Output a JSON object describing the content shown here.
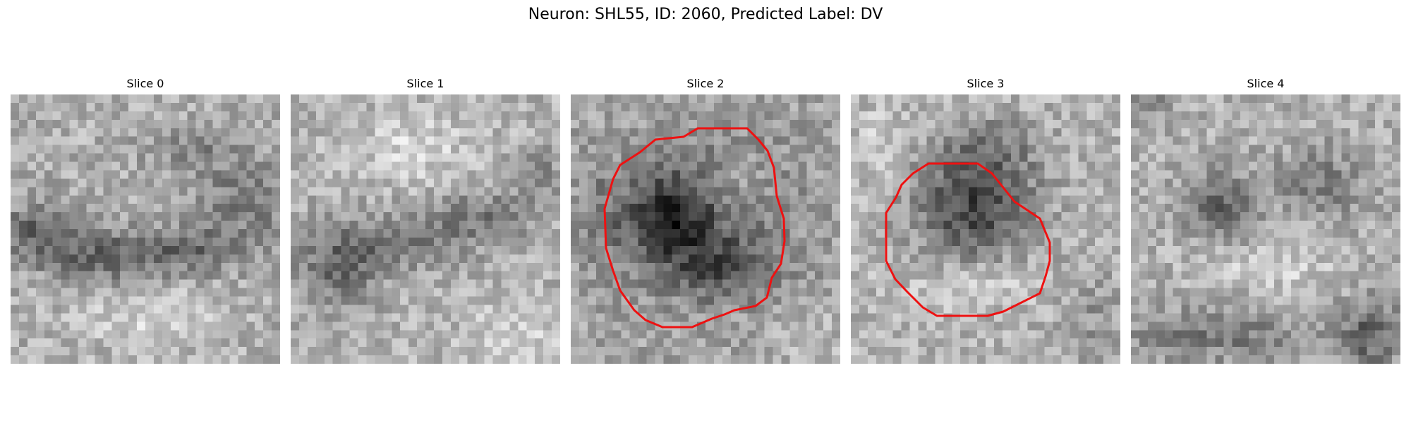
{
  "figure": {
    "title": "Neuron: SHL55, ID: 2060, Predicted Label: DV"
  },
  "colors": {
    "outline": "#ee1111",
    "background": "#ffffff"
  },
  "slices": [
    {
      "label": "Slice 0",
      "has_outline": false
    },
    {
      "label": "Slice 1",
      "has_outline": false
    },
    {
      "label": "Slice 2",
      "has_outline": true
    },
    {
      "label": "Slice 3",
      "has_outline": true
    },
    {
      "label": "Slice 4",
      "has_outline": false
    }
  ]
}
